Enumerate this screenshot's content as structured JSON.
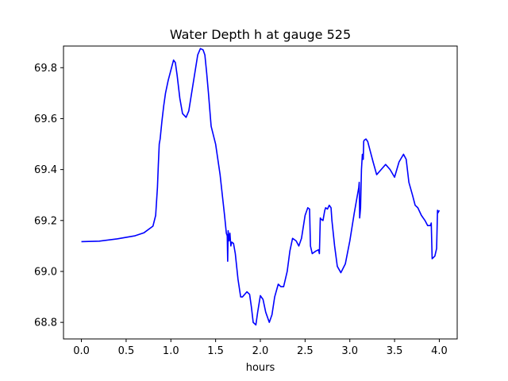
{
  "chart_data": {
    "type": "line",
    "title": "Water Depth h at gauge 525",
    "xlabel": "hours",
    "ylabel": "",
    "xlim": [
      -0.2,
      4.2
    ],
    "ylim": [
      68.735,
      69.885
    ],
    "xticks": [
      0.0,
      0.5,
      1.0,
      1.5,
      2.0,
      2.5,
      3.0,
      3.5,
      4.0
    ],
    "xtick_labels": [
      "0.0",
      "0.5",
      "1.0",
      "1.5",
      "2.0",
      "2.5",
      "3.0",
      "3.5",
      "4.0"
    ],
    "yticks": [
      68.8,
      69.0,
      69.2,
      69.4,
      69.6,
      69.8
    ],
    "ytick_labels": [
      "68.8",
      "69.0",
      "69.2",
      "69.4",
      "69.6",
      "69.8"
    ],
    "grid": false,
    "series": [
      {
        "color": "#0000ff",
        "x": [
          0.0,
          0.2,
          0.4,
          0.6,
          0.7,
          0.8,
          0.83,
          0.85,
          0.86,
          0.87,
          0.88,
          0.9,
          0.92,
          0.94,
          0.97,
          1.0,
          1.03,
          1.05,
          1.07,
          1.1,
          1.13,
          1.17,
          1.2,
          1.25,
          1.3,
          1.33,
          1.36,
          1.38,
          1.4,
          1.42,
          1.45,
          1.5,
          1.55,
          1.6,
          1.62,
          1.63,
          1.635,
          1.64,
          1.65,
          1.66,
          1.67,
          1.68,
          1.7,
          1.72,
          1.75,
          1.78,
          1.8,
          1.85,
          1.88,
          1.9,
          1.92,
          1.95,
          1.97,
          2.0,
          2.03,
          2.06,
          2.1,
          2.13,
          2.16,
          2.2,
          2.23,
          2.26,
          2.3,
          2.33,
          2.36,
          2.4,
          2.43,
          2.46,
          2.5,
          2.53,
          2.55,
          2.56,
          2.58,
          2.62,
          2.65,
          2.66,
          2.67,
          2.68,
          2.7,
          2.72,
          2.73,
          2.75,
          2.77,
          2.79,
          2.8,
          2.83,
          2.86,
          2.9,
          2.95,
          3.0,
          3.05,
          3.1,
          3.105,
          3.11,
          3.12,
          3.13,
          3.14,
          3.15,
          3.155,
          3.16,
          3.18,
          3.2,
          3.23,
          3.26,
          3.3,
          3.35,
          3.4,
          3.45,
          3.5,
          3.55,
          3.6,
          3.63,
          3.66,
          3.7,
          3.73,
          3.76,
          3.8,
          3.84,
          3.87,
          3.9,
          3.91,
          3.92,
          3.95,
          3.97,
          3.98,
          3.985,
          4.0
        ],
        "y": [
          69.117,
          69.119,
          69.128,
          69.14,
          69.152,
          69.178,
          69.22,
          69.33,
          69.42,
          69.5,
          69.52,
          69.59,
          69.65,
          69.7,
          69.75,
          69.79,
          69.83,
          69.82,
          69.77,
          69.68,
          69.62,
          69.605,
          69.63,
          69.74,
          69.85,
          69.875,
          69.87,
          69.85,
          69.78,
          69.7,
          69.57,
          69.5,
          69.38,
          69.22,
          69.15,
          69.14,
          69.04,
          69.16,
          69.12,
          69.15,
          69.1,
          69.115,
          69.11,
          69.07,
          68.97,
          68.9,
          68.9,
          68.92,
          68.91,
          68.86,
          68.8,
          68.79,
          68.84,
          68.905,
          68.89,
          68.84,
          68.8,
          68.83,
          68.9,
          68.95,
          68.94,
          68.94,
          69.0,
          69.08,
          69.13,
          69.12,
          69.1,
          69.13,
          69.22,
          69.25,
          69.245,
          69.1,
          69.07,
          69.08,
          69.085,
          69.07,
          69.21,
          69.205,
          69.2,
          69.24,
          69.25,
          69.245,
          69.26,
          69.25,
          69.2,
          69.1,
          69.02,
          68.995,
          69.03,
          69.12,
          69.23,
          69.33,
          69.35,
          69.21,
          69.25,
          69.4,
          69.46,
          69.44,
          69.51,
          69.515,
          69.52,
          69.51,
          69.47,
          69.43,
          69.38,
          69.4,
          69.42,
          69.4,
          69.37,
          69.43,
          69.46,
          69.44,
          69.35,
          69.3,
          69.26,
          69.25,
          69.22,
          69.2,
          69.18,
          69.18,
          69.19,
          69.05,
          69.06,
          69.09,
          69.24,
          69.23,
          69.24
        ]
      }
    ]
  }
}
